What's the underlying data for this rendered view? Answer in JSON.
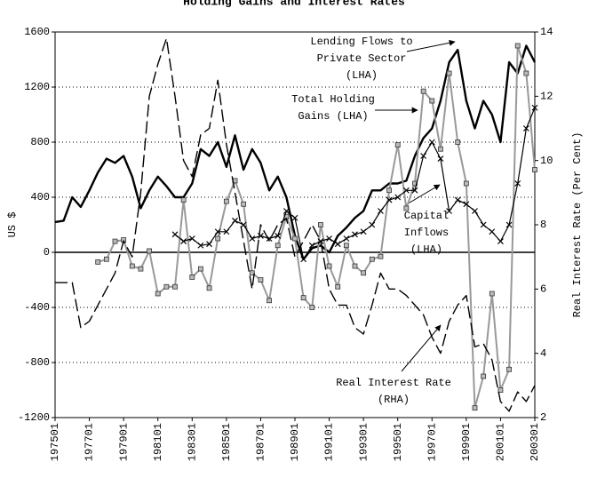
{
  "chart_data": {
    "type": "line",
    "title": "Holding Gains and Interest Rates",
    "ylabel": "US $",
    "y2label": "Real Interest Rate (Per Cent)",
    "categories": [
      "197501",
      null,
      null,
      null,
      "197701",
      null,
      null,
      null,
      "197901",
      null,
      null,
      null,
      "198101",
      null,
      null,
      null,
      "198301",
      null,
      null,
      null,
      "198501",
      null,
      null,
      null,
      "198701",
      null,
      null,
      null,
      "198901",
      null,
      null,
      null,
      "199101",
      null,
      null,
      null,
      "199301",
      null,
      null,
      null,
      "199501",
      null,
      null,
      null,
      "199701",
      null,
      null,
      null,
      "199901",
      null,
      null,
      null,
      "200101",
      null,
      null,
      null,
      "200301"
    ],
    "ylim": [
      -1200,
      1600
    ],
    "yticks": [
      -1200,
      -800,
      -400,
      0,
      400,
      800,
      1200,
      1600
    ],
    "y2lim": [
      2,
      14
    ],
    "y2ticks": [
      2,
      4,
      6,
      8,
      10,
      12,
      14
    ],
    "grid": true,
    "series": [
      {
        "color": "#000000",
        "style": "solid",
        "width": 2.4,
        "values": [
          220,
          230,
          400,
          330,
          450,
          580,
          680,
          650,
          700,
          550,
          320,
          450,
          550,
          480,
          400,
          400,
          500,
          750,
          700,
          800,
          620,
          850,
          600,
          750,
          650,
          450,
          550,
          400,
          120,
          -50,
          30,
          50,
          0,
          120,
          180,
          250,
          300,
          450,
          450,
          500,
          500,
          520,
          700,
          830,
          900,
          1100,
          1380,
          1470,
          1100,
          900,
          1100,
          1000,
          800,
          1380,
          1300,
          1500,
          1380
        ]
      },
      {
        "color": "#999999",
        "style": "solid",
        "width": 2,
        "marker": "square",
        "values": [
          null,
          null,
          null,
          null,
          null,
          -70,
          -50,
          80,
          90,
          -100,
          -120,
          10,
          -300,
          -250,
          -250,
          380,
          -180,
          -120,
          -260,
          100,
          370,
          520,
          350,
          -150,
          -200,
          -350,
          50,
          260,
          100,
          -330,
          -400,
          200,
          -100,
          -250,
          50,
          -100,
          -150,
          -50,
          -30,
          450,
          780,
          320,
          500,
          1170,
          1100,
          750,
          1300,
          800,
          500,
          -1130,
          -900,
          -300,
          -1000,
          -850,
          1500,
          1300,
          600
        ]
      },
      {
        "color": "#000000",
        "style": "solid",
        "width": 1.2,
        "marker": "x",
        "values": [
          null,
          null,
          null,
          null,
          null,
          null,
          null,
          null,
          null,
          null,
          null,
          null,
          null,
          null,
          130,
          80,
          100,
          50,
          60,
          150,
          150,
          230,
          200,
          100,
          120,
          100,
          120,
          300,
          250,
          -50,
          50,
          80,
          100,
          60,
          100,
          130,
          150,
          200,
          300,
          380,
          400,
          450,
          450,
          700,
          800,
          680,
          300,
          380,
          350,
          300,
          200,
          150,
          80,
          200,
          500,
          900,
          1050
        ]
      },
      {
        "color": "#000000",
        "style": "dashed",
        "width": 1.4,
        "axis": "y2",
        "values": [
          6.2,
          6.2,
          6.2,
          4.8,
          5.0,
          5.5,
          6.0,
          6.5,
          7.5,
          7.0,
          9.0,
          12.0,
          13.0,
          13.8,
          12.0,
          10.0,
          9.5,
          10.8,
          11.0,
          12.5,
          10.5,
          9.0,
          7.5,
          6.0,
          8.0,
          7.5,
          8.0,
          8.2,
          7.0,
          7.5,
          8.0,
          7.5,
          6.0,
          5.5,
          5.5,
          4.8,
          4.6,
          5.5,
          6.5,
          6.0,
          6.0,
          5.8,
          5.5,
          5.2,
          4.5,
          4.0,
          5.0,
          5.5,
          5.8,
          4.2,
          4.3,
          3.8,
          2.5,
          2.2,
          2.8,
          2.5,
          3.0
        ]
      }
    ],
    "annotations": [
      {
        "lines": [
          "Lending Flows to",
          "Private Sector",
          "(LHA)"
        ]
      },
      {
        "lines": [
          "Total Holding",
          "Gains (LHA)"
        ]
      },
      {
        "lines": [
          "Capital",
          "Inflows",
          "(LHA)"
        ]
      },
      {
        "lines": [
          "Real Interest Rate",
          "(RHA)"
        ]
      }
    ]
  }
}
